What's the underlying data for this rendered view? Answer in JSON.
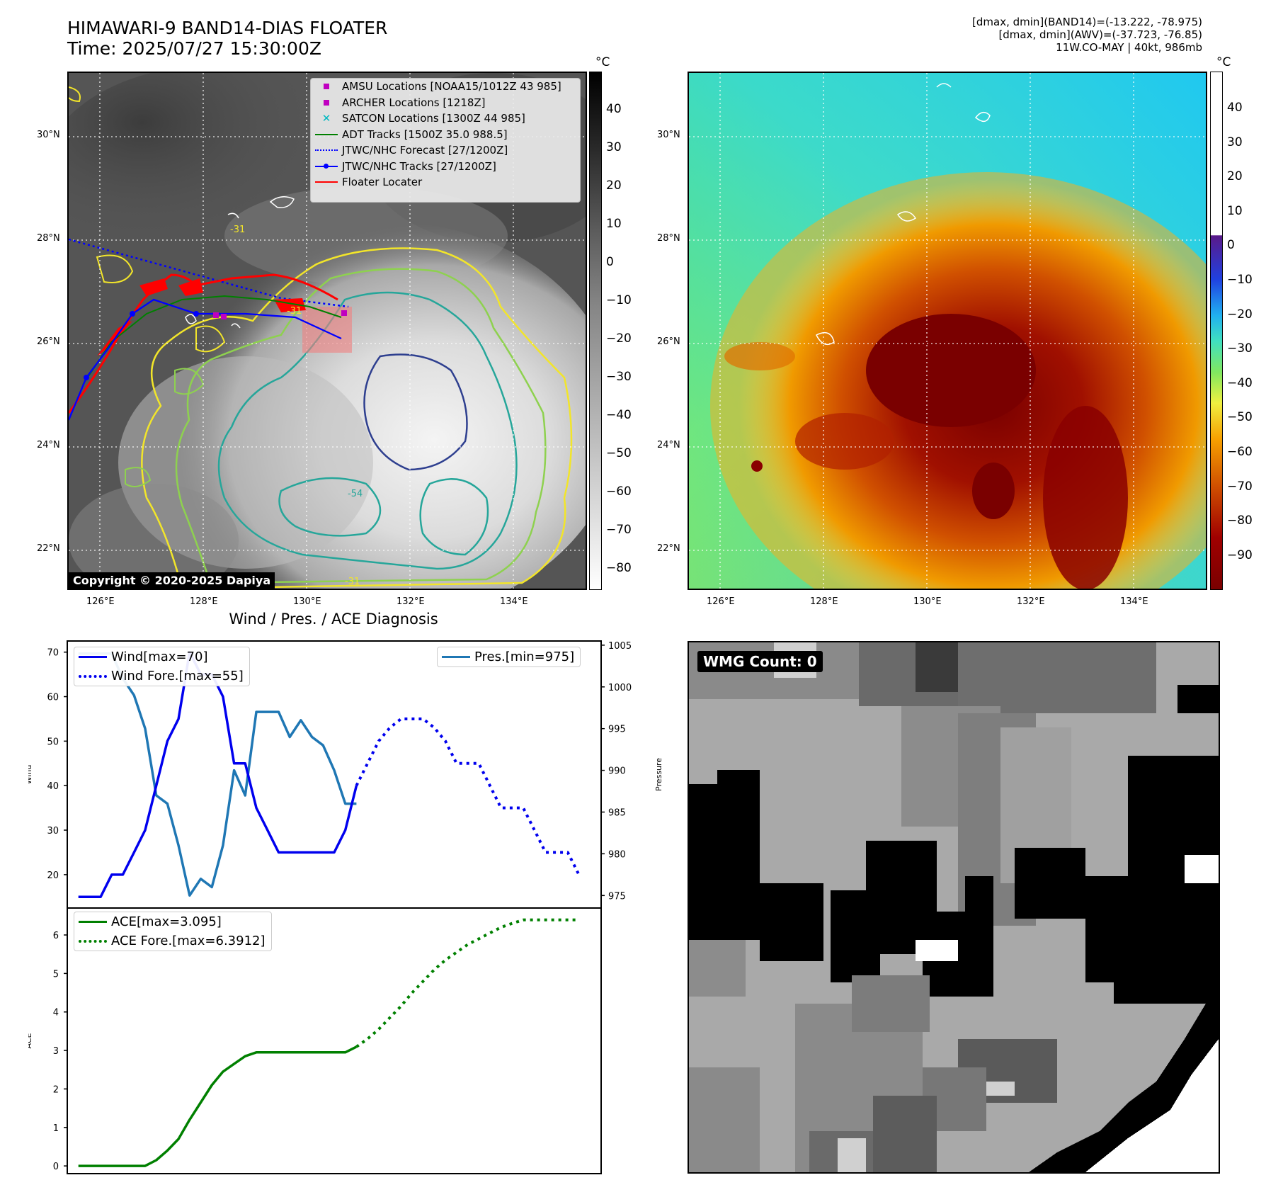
{
  "header": {
    "title_line1": "HIMAWARI-9 BAND14-DIAS FLOATER",
    "title_line2": "Time: 2025/07/27 15:30:00Z",
    "stats_line1": "[dmax, dmin](BAND14)=(-13.222, -78.975)",
    "stats_line2": "[dmax, dmin](AWV)=(-37.723, -76.85)",
    "stats_line3": "11W.CO-MAY | 40kt, 986mb"
  },
  "map": {
    "copyright": "Copyright © 2020-2025 Dapiya",
    "lat_labels": [
      "30°N",
      "28°N",
      "26°N",
      "24°N",
      "22°N"
    ],
    "lon_labels": [
      "126°E",
      "128°E",
      "130°E",
      "132°E",
      "134°E"
    ],
    "contour_labels": [
      "-31",
      "-31",
      "-54",
      "-31"
    ],
    "legend": [
      {
        "label": "AMSU Locations [NOAA15/1012Z 43 985]",
        "color": "#c000c0",
        "symbol": "square"
      },
      {
        "label": "ARCHER Locations [1218Z]",
        "color": "#c000c0",
        "symbol": "square"
      },
      {
        "label": "SATCON Locations [1300Z 44 985]",
        "color": "#00b8c0",
        "symbol": "x"
      },
      {
        "label": "ADT Tracks [1500Z 35.0 988.5]",
        "color": "#008000",
        "symbol": "line"
      },
      {
        "label": "JTWC/NHC Forecast [27/1200Z]",
        "color": "#0000ff",
        "symbol": "dotted"
      },
      {
        "label": "JTWC/NHC Tracks [27/1200Z]",
        "color": "#0000ff",
        "symbol": "line-dot"
      },
      {
        "label": "Floater Locater",
        "color": "#ff0000",
        "symbol": "line"
      }
    ]
  },
  "colorbar_left": {
    "unit": "°C",
    "ticks": [
      "40",
      "30",
      "20",
      "10",
      "0",
      "−10",
      "−20",
      "−30",
      "−40",
      "−50",
      "−60",
      "−70",
      "−80"
    ]
  },
  "colorbar_right": {
    "unit": "°C",
    "ticks": [
      "40",
      "30",
      "20",
      "10",
      "0",
      "−10",
      "−20",
      "−30",
      "−40",
      "−50",
      "−60",
      "−70",
      "−80",
      "−90"
    ]
  },
  "wmg": {
    "label": "WMG Count: 0"
  },
  "chart_data": [
    {
      "type": "line",
      "title": "Wind / Pres. / ACE Diagnosis",
      "ylabel": "Wind",
      "y2label": "Pressure",
      "ylim": [
        12.5,
        72.5
      ],
      "y2lim": [
        973.5,
        1005.5
      ],
      "yticks": [
        20,
        30,
        40,
        50,
        60,
        70
      ],
      "y2ticks": [
        975,
        980,
        985,
        990,
        995,
        1000,
        1005
      ],
      "x": [
        0,
        1,
        2,
        3,
        4,
        5,
        6,
        7,
        8,
        9,
        10,
        11,
        12,
        13,
        14,
        15,
        16,
        17,
        18,
        19,
        20,
        21,
        22,
        23,
        24,
        25,
        26,
        27,
        28,
        29,
        30,
        31,
        32,
        33,
        34,
        35,
        36,
        37,
        38,
        39,
        40,
        41,
        42,
        43,
        44,
        45
      ],
      "series": [
        {
          "name": "Wind[max=70]",
          "style": "solid",
          "color": "#0000ee",
          "values": [
            15,
            15,
            15,
            20,
            20,
            25,
            30,
            40,
            50,
            55,
            70,
            65,
            65,
            60,
            45,
            45,
            35,
            30,
            25,
            25,
            25,
            25,
            25,
            25,
            30,
            40,
            null,
            null,
            null,
            null,
            null,
            null,
            null,
            null,
            null,
            null,
            null,
            null,
            null,
            null,
            null,
            null,
            null,
            null,
            null,
            null
          ]
        },
        {
          "name": "Wind Fore.[max=55]",
          "style": "dotted",
          "color": "#0000ee",
          "values": [
            null,
            null,
            null,
            null,
            null,
            null,
            null,
            null,
            null,
            null,
            null,
            null,
            null,
            null,
            null,
            null,
            null,
            null,
            null,
            null,
            null,
            null,
            null,
            null,
            null,
            40,
            45,
            50,
            53,
            55,
            55,
            55,
            53,
            50,
            45,
            45,
            45,
            40,
            35,
            35,
            35,
            30,
            25,
            25,
            25,
            20
          ]
        },
        {
          "name": "Pres.[min=975]",
          "style": "solid",
          "color": "#1f77b4",
          "axis": "y2",
          "values": [
            1004,
            1004,
            1004,
            1004,
            1001,
            999,
            995,
            987,
            986,
            981,
            975,
            977,
            976,
            981,
            990,
            987,
            997,
            997,
            997,
            994,
            996,
            994,
            993,
            990,
            986,
            986,
            null,
            null,
            null,
            null,
            null,
            null,
            null,
            null,
            null,
            null,
            null,
            null,
            null,
            null,
            null,
            null,
            null,
            null,
            null,
            null
          ]
        }
      ]
    },
    {
      "type": "line",
      "ylabel": "ACE",
      "ylim": [
        -0.2,
        6.7
      ],
      "yticks": [
        0,
        1,
        2,
        3,
        4,
        5,
        6
      ],
      "x": [
        0,
        1,
        2,
        3,
        4,
        5,
        6,
        7,
        8,
        9,
        10,
        11,
        12,
        13,
        14,
        15,
        16,
        17,
        18,
        19,
        20,
        21,
        22,
        23,
        24,
        25,
        26,
        27,
        28,
        29,
        30,
        31,
        32,
        33,
        34,
        35,
        36,
        37,
        38,
        39,
        40,
        41,
        42,
        43,
        44,
        45
      ],
      "series": [
        {
          "name": "ACE[max=3.095]",
          "style": "solid",
          "color": "#008000",
          "values": [
            0,
            0,
            0,
            0,
            0,
            0,
            0,
            0.15,
            0.4,
            0.7,
            1.2,
            1.65,
            2.1,
            2.45,
            2.65,
            2.85,
            2.95,
            2.95,
            2.95,
            2.95,
            2.95,
            2.95,
            2.95,
            2.95,
            2.95,
            3.095,
            null,
            null,
            null,
            null,
            null,
            null,
            null,
            null,
            null,
            null,
            null,
            null,
            null,
            null,
            null,
            null,
            null,
            null,
            null,
            null
          ]
        },
        {
          "name": "ACE Fore.[max=6.3912]",
          "style": "dotted",
          "color": "#008000",
          "values": [
            null,
            null,
            null,
            null,
            null,
            null,
            null,
            null,
            null,
            null,
            null,
            null,
            null,
            null,
            null,
            null,
            null,
            null,
            null,
            null,
            null,
            null,
            null,
            null,
            null,
            3.095,
            3.3,
            3.55,
            3.85,
            4.15,
            4.5,
            4.8,
            5.1,
            5.35,
            5.55,
            5.75,
            5.9,
            6.05,
            6.2,
            6.3,
            6.39,
            6.39,
            6.39,
            6.39,
            6.39,
            6.39
          ]
        }
      ]
    }
  ]
}
